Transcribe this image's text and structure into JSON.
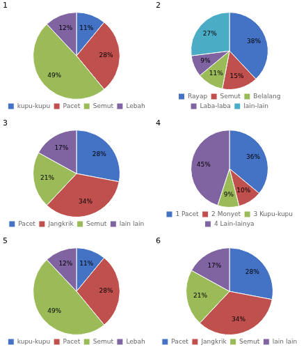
{
  "chart_data": [
    {
      "type": "pie",
      "title": "1",
      "categories": [
        "kupu-kupu",
        "Pacet",
        "Semut",
        "Lebah"
      ],
      "values": [
        11,
        28,
        49,
        12
      ],
      "value_labels": [
        "11%",
        "28%",
        "49%",
        "12%"
      ],
      "colors": [
        "#4472C4",
        "#C0504D",
        "#9BBB59",
        "#8064A2"
      ],
      "data_labels": true,
      "legend": "bottom"
    },
    {
      "type": "pie",
      "title": "2",
      "categories": [
        "Rayap",
        "Semut",
        "Belalang",
        "Laba-laba",
        "lain-lain"
      ],
      "values": [
        38,
        15,
        11,
        9,
        27
      ],
      "value_labels": [
        "38%",
        "15%",
        "11%",
        "9%",
        "27%"
      ],
      "colors": [
        "#4472C4",
        "#C0504D",
        "#9BBB59",
        "#8064A2",
        "#4BACC6"
      ],
      "data_labels": true,
      "legend": "bottom"
    },
    {
      "type": "pie",
      "title": "3",
      "categories": [
        "Pacet",
        "Jangkrik",
        "Semut",
        "lain lain"
      ],
      "values": [
        28,
        34,
        21,
        17
      ],
      "value_labels": [
        "28%",
        "34%",
        "21%",
        "17%"
      ],
      "colors": [
        "#4472C4",
        "#C0504D",
        "#9BBB59",
        "#8064A2"
      ],
      "data_labels": true,
      "legend": "bottom"
    },
    {
      "type": "pie",
      "title": "4",
      "categories": [
        "1 Pacet",
        "2 Monyet",
        "3 Kupu-kupu",
        "4 Lain-lainya"
      ],
      "values": [
        36,
        10,
        9,
        45
      ],
      "value_labels": [
        "36%",
        "10%",
        "9%",
        "45%"
      ],
      "colors": [
        "#4472C4",
        "#C0504D",
        "#9BBB59",
        "#8064A2"
      ],
      "data_labels": true,
      "legend": "bottom"
    },
    {
      "type": "pie",
      "title": "5",
      "categories": [
        "kupu-kupu",
        "Pacet",
        "Semut",
        "Lebah"
      ],
      "values": [
        11,
        28,
        49,
        12
      ],
      "value_labels": [
        "11%",
        "28%",
        "49%",
        "12%"
      ],
      "colors": [
        "#4472C4",
        "#C0504D",
        "#9BBB59",
        "#8064A2"
      ],
      "data_labels": true,
      "legend": "bottom"
    },
    {
      "type": "pie",
      "title": "6",
      "categories": [
        "Pacet",
        "Jangkrik",
        "Semut",
        "lain lain"
      ],
      "values": [
        28,
        34,
        21,
        17
      ],
      "value_labels": [
        "28%",
        "34%",
        "21%",
        "17%"
      ],
      "colors": [
        "#4472C4",
        "#C0504D",
        "#9BBB59",
        "#8064A2"
      ],
      "data_labels": true,
      "legend": "bottom"
    }
  ]
}
